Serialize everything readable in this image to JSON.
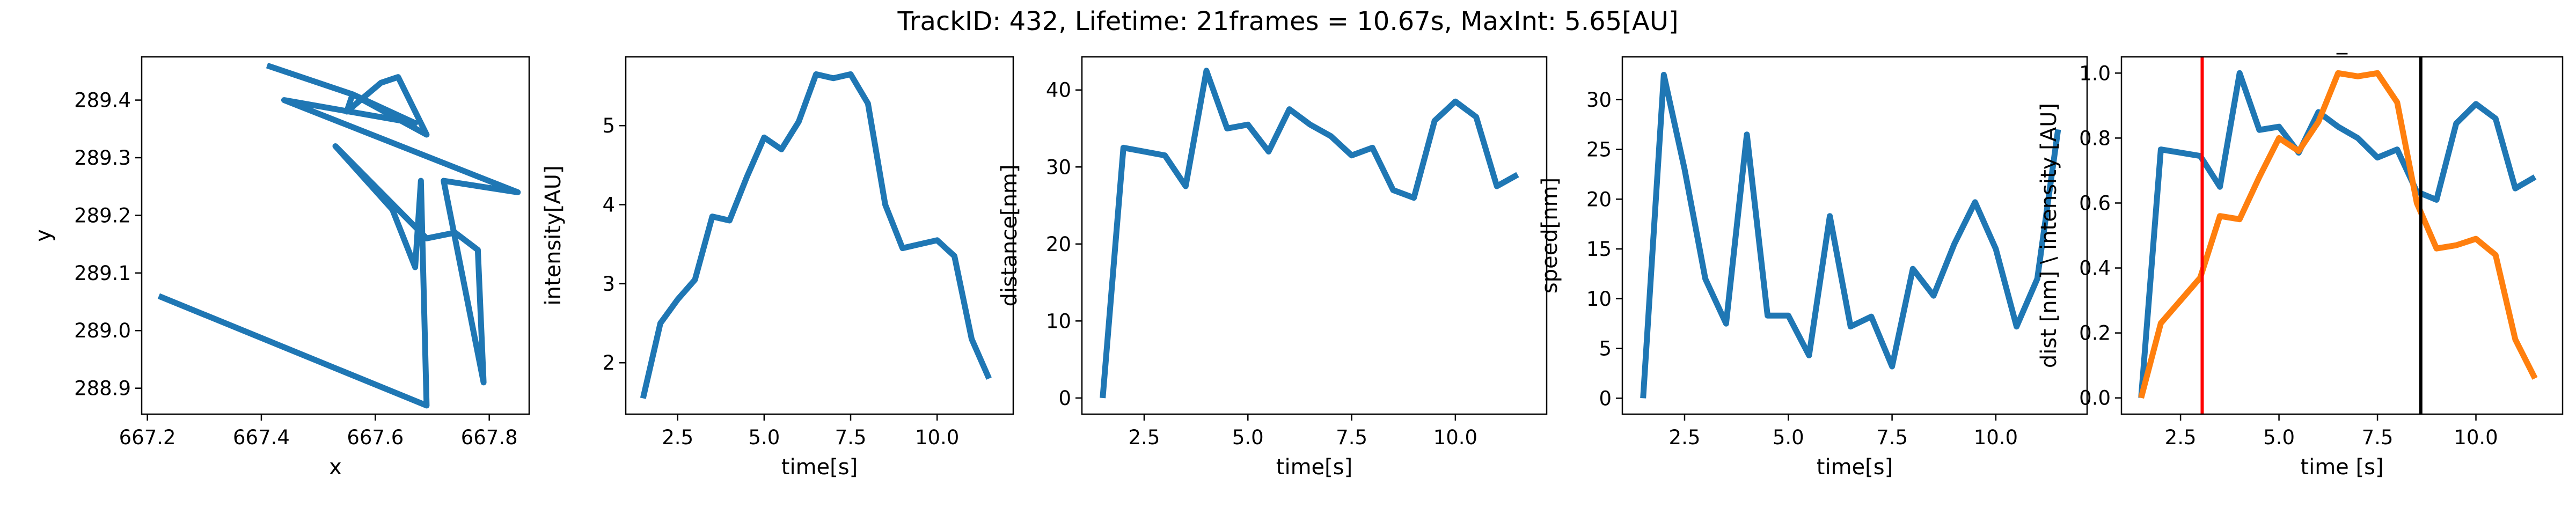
{
  "figure": {
    "title": "TrackID: 432, Lifetime: 21frames = 10.67s, MaxInt: 5.65[AU]"
  },
  "chart_data": [
    {
      "type": "line",
      "title": "",
      "xlabel": "x",
      "ylabel": "y",
      "xlim": [
        667.19,
        667.87
      ],
      "ylim": [
        288.855,
        289.475
      ],
      "xticks": [
        667.2,
        667.4,
        667.6,
        667.8
      ],
      "yticks": [
        288.9,
        289.0,
        289.1,
        289.2,
        289.3,
        289.4
      ],
      "xtick_labels": [
        "667.2",
        "667.4",
        "667.6",
        "667.8"
      ],
      "ytick_labels": [
        "288.9",
        "289.0",
        "289.1",
        "289.2",
        "289.3",
        "289.4"
      ],
      "series": [
        {
          "color": "#1f77b4",
          "x": [
            667.22,
            667.69,
            667.68,
            667.67,
            667.63,
            667.53,
            667.69,
            667.74,
            667.78,
            667.79,
            667.72,
            667.85,
            667.44,
            667.67,
            667.56,
            667.69,
            667.64,
            667.61,
            667.55,
            667.56,
            667.41
          ],
          "y": [
            289.06,
            288.87,
            289.26,
            289.11,
            289.21,
            289.32,
            289.16,
            289.17,
            289.14,
            288.91,
            289.26,
            289.24,
            289.4,
            289.36,
            289.41,
            289.34,
            289.44,
            289.43,
            289.38,
            289.41,
            289.46
          ]
        }
      ]
    },
    {
      "type": "line",
      "title": "",
      "xlabel": "time[s]",
      "ylabel": "intensity[AU]",
      "xlim": [
        1.0,
        12.2
      ],
      "ylim": [
        1.35,
        5.87
      ],
      "xticks": [
        2.5,
        5.0,
        7.5,
        10.0
      ],
      "yticks": [
        2,
        3,
        4,
        5
      ],
      "xtick_labels": [
        "2.5",
        "5.0",
        "7.5",
        "10.0"
      ],
      "ytick_labels": [
        "2",
        "3",
        "4",
        "5"
      ],
      "series": [
        {
          "color": "#1f77b4",
          "x": [
            1.5,
            2.0,
            2.5,
            3.0,
            3.5,
            4.0,
            4.5,
            5.0,
            5.5,
            6.0,
            6.5,
            7.0,
            7.5,
            8.0,
            8.5,
            9.0,
            9.5,
            10.0,
            10.5,
            11.0,
            11.5
          ],
          "y": [
            1.55,
            2.5,
            2.8,
            3.05,
            3.85,
            3.8,
            4.35,
            4.85,
            4.7,
            5.05,
            5.65,
            5.6,
            5.65,
            5.28,
            4.0,
            3.45,
            3.5,
            3.55,
            3.35,
            2.3,
            1.8
          ]
        }
      ]
    },
    {
      "type": "line",
      "title": "",
      "xlabel": "time[s]",
      "ylabel": "distance[nm]",
      "xlim": [
        1.0,
        12.2
      ],
      "ylim": [
        -2.1,
        44.3
      ],
      "xticks": [
        2.5,
        5.0,
        7.5,
        10.0
      ],
      "yticks": [
        0,
        10,
        20,
        30,
        40
      ],
      "xtick_labels": [
        "2.5",
        "5.0",
        "7.5",
        "10.0"
      ],
      "ytick_labels": [
        "0",
        "10",
        "20",
        "30",
        "40"
      ],
      "series": [
        {
          "color": "#1f77b4",
          "x": [
            1.5,
            2.0,
            2.5,
            3.0,
            3.5,
            4.0,
            4.5,
            5.0,
            5.5,
            6.0,
            6.5,
            7.0,
            7.5,
            8.0,
            8.5,
            9.0,
            9.5,
            10.0,
            10.5,
            11.0,
            11.5
          ],
          "y": [
            0,
            32.5,
            32.0,
            31.5,
            27.5,
            42.5,
            35.0,
            35.5,
            32.0,
            37.5,
            35.5,
            34.0,
            31.5,
            32.5,
            27.0,
            26.0,
            36.0,
            38.5,
            36.5,
            27.5,
            29.0
          ]
        }
      ]
    },
    {
      "type": "line",
      "title": "",
      "xlabel": "time[s]",
      "ylabel": "speed[nm]",
      "xlim": [
        1.0,
        12.2
      ],
      "ylim": [
        -1.6,
        34.3
      ],
      "xticks": [
        2.5,
        5.0,
        7.5,
        10.0
      ],
      "yticks": [
        0,
        5,
        10,
        15,
        20,
        25,
        30
      ],
      "xtick_labels": [
        "2.5",
        "5.0",
        "7.5",
        "10.0"
      ],
      "ytick_labels": [
        "0",
        "5",
        "10",
        "15",
        "20",
        "25",
        "30"
      ],
      "series": [
        {
          "color": "#1f77b4",
          "x": [
            1.5,
            2.0,
            2.5,
            3.0,
            3.5,
            4.0,
            4.5,
            5.0,
            5.5,
            6.0,
            6.5,
            7.0,
            7.5,
            8.0,
            8.5,
            9.0,
            9.5,
            10.0,
            10.5,
            11.0,
            11.5
          ],
          "y": [
            0,
            32.5,
            23.0,
            12.0,
            7.5,
            26.5,
            8.3,
            8.3,
            4.3,
            18.3,
            7.2,
            8.2,
            3.2,
            13.0,
            10.3,
            15.5,
            19.7,
            15.0,
            7.2,
            12.0,
            27.0
          ]
        }
      ]
    },
    {
      "type": "line",
      "title": "_",
      "xlabel": "time [s]",
      "ylabel": "dist [nm] \\ intensity [AU]",
      "xlim": [
        1.0,
        12.2
      ],
      "ylim": [
        -0.05,
        1.05
      ],
      "xticks": [
        2.5,
        5.0,
        7.5,
        10.0
      ],
      "yticks": [
        0.0,
        0.2,
        0.4,
        0.6,
        0.8,
        1.0
      ],
      "xtick_labels": [
        "2.5",
        "5.0",
        "7.5",
        "10.0"
      ],
      "ytick_labels": [
        "0.0",
        "0.2",
        "0.4",
        "0.6",
        "0.8",
        "1.0"
      ],
      "vlines": [
        {
          "x": 3.05,
          "color": "#ff0000"
        },
        {
          "x": 8.6,
          "color": "#000000"
        }
      ],
      "series": [
        {
          "color": "#1f77b4",
          "x": [
            1.5,
            2.0,
            2.5,
            3.0,
            3.5,
            4.0,
            4.5,
            5.0,
            5.5,
            6.0,
            6.5,
            7.0,
            7.5,
            8.0,
            8.5,
            9.0,
            9.5,
            10.0,
            10.5,
            11.0,
            11.5
          ],
          "y": [
            0,
            0.765,
            0.755,
            0.745,
            0.65,
            1.0,
            0.825,
            0.835,
            0.755,
            0.88,
            0.835,
            0.8,
            0.74,
            0.765,
            0.635,
            0.61,
            0.845,
            0.905,
            0.86,
            0.645,
            0.68
          ]
        },
        {
          "color": "#ff7f0e",
          "x": [
            1.5,
            2.0,
            2.5,
            3.0,
            3.5,
            4.0,
            4.5,
            5.0,
            5.5,
            6.0,
            6.5,
            7.0,
            7.5,
            8.0,
            8.5,
            9.0,
            9.5,
            10.0,
            10.5,
            11.0,
            11.5
          ],
          "y": [
            0,
            0.23,
            0.3,
            0.37,
            0.56,
            0.55,
            0.68,
            0.8,
            0.76,
            0.85,
            1.0,
            0.99,
            1.0,
            0.91,
            0.6,
            0.46,
            0.47,
            0.49,
            0.44,
            0.18,
            0.06
          ]
        }
      ]
    }
  ]
}
